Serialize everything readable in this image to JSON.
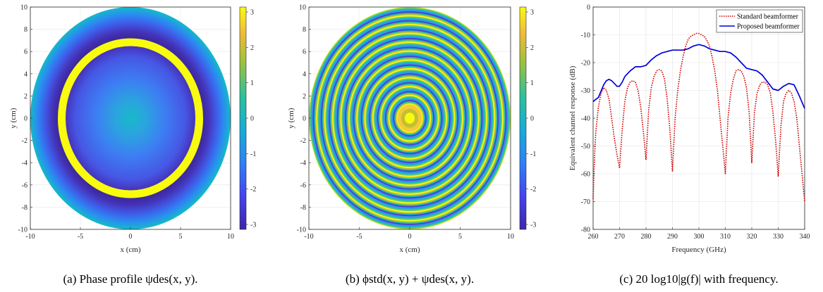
{
  "colors": {
    "parula_low": "#3e26a8",
    "parula_mid": "#14bac8",
    "parula_high": "#f9fb0e",
    "standard": "#cc0000",
    "proposed": "#0000d6"
  },
  "chart_data": [
    {
      "type": "heatmap",
      "id": "a",
      "caption": "(a) Phase profile ψdes(x, y).",
      "xlabel": "x (cm)",
      "ylabel": "y (cm)",
      "xlim": [
        -10,
        10
      ],
      "ylim": [
        -10,
        10
      ],
      "xticks": [
        "-10",
        "-5",
        "0",
        "5",
        "10"
      ],
      "yticks": [
        "10",
        "8",
        "6",
        "4",
        "2",
        "0",
        "-2",
        "-4",
        "-6",
        "-8",
        "-10"
      ],
      "colorbar": {
        "min": -3.14,
        "max": 3.14,
        "ticks": [
          "3",
          "2",
          "1",
          "0",
          "-1",
          "-2",
          "-3"
        ]
      },
      "aperture_radius": 10,
      "yellow_ring": {
        "inner_radius": 6.5,
        "outer_radius": 7.2,
        "value": 3.14
      },
      "center_value": 0,
      "edge_value": 0,
      "min_value_near_ring": -3
    },
    {
      "type": "heatmap",
      "id": "b",
      "caption": "(b) ϕstd(x, y) + ψdes(x, y).",
      "xlabel": "x (cm)",
      "ylabel": "y (cm)",
      "xlim": [
        -10,
        10
      ],
      "ylim": [
        -10,
        10
      ],
      "xticks": [
        "-10",
        "-5",
        "0",
        "5",
        "10"
      ],
      "yticks": [
        "10",
        "8",
        "6",
        "4",
        "2",
        "0",
        "-2",
        "-4",
        "-6",
        "-8",
        "-10"
      ],
      "colorbar": {
        "min": -3.14,
        "max": 3.14,
        "ticks": [
          "3",
          "2",
          "1",
          "0",
          "-1",
          "-2",
          "-3"
        ]
      },
      "aperture_radius": 10,
      "central_disk_radius": 0.9,
      "approx_ring_count": 40
    },
    {
      "type": "line",
      "id": "c",
      "caption": "(c) 20 log10|g(f)| with frequency.",
      "xlabel": "Frequency (GHz)",
      "ylabel": "Equivalent channel response (dB)",
      "xlim": [
        260,
        340
      ],
      "ylim": [
        -80,
        0
      ],
      "xticks": [
        "260",
        "270",
        "280",
        "290",
        "300",
        "310",
        "320",
        "330",
        "340"
      ],
      "yticks": [
        "0",
        "-10",
        "-20",
        "-30",
        "-40",
        "-50",
        "-60",
        "-70",
        "-80"
      ],
      "grid": true,
      "legend_position": "top-right",
      "series": [
        {
          "name": "Standard beamformer",
          "style": "dotted",
          "x": [
            260,
            260.5,
            261,
            262,
            263,
            264,
            265,
            266,
            267,
            268,
            269,
            270,
            271,
            272,
            273,
            274,
            275,
            276,
            277,
            278,
            279,
            280,
            281,
            282,
            283,
            284,
            285,
            286,
            287,
            288,
            289,
            290,
            291,
            292,
            293,
            294,
            295,
            296,
            297,
            298,
            299,
            300,
            301,
            302,
            303,
            304,
            305,
            306,
            307,
            308,
            309,
            310,
            311,
            312,
            313,
            314,
            315,
            316,
            317,
            318,
            319,
            320,
            321,
            322,
            323,
            324,
            325,
            326,
            327,
            328,
            329,
            330,
            331,
            332,
            333,
            334,
            335,
            336,
            337,
            338,
            339,
            339.5,
            340
          ],
          "y": [
            -69,
            -55,
            -45,
            -36,
            -31,
            -29,
            -30,
            -33,
            -40,
            -47,
            -53,
            -58,
            -44,
            -34,
            -29,
            -27,
            -26.5,
            -27,
            -30,
            -36,
            -45,
            -55,
            -37,
            -29,
            -25,
            -23,
            -22.5,
            -23,
            -26,
            -33,
            -44,
            -59,
            -40,
            -30,
            -23,
            -18,
            -14,
            -11.5,
            -10.5,
            -10,
            -9.5,
            -9.5,
            -10,
            -10.5,
            -12,
            -14,
            -18,
            -23,
            -30,
            -40,
            -50,
            -60,
            -40,
            -31,
            -26,
            -23,
            -22.5,
            -23,
            -25,
            -29,
            -38,
            -56,
            -38,
            -31,
            -28,
            -27,
            -27,
            -28,
            -31,
            -38,
            -48,
            -61,
            -43,
            -34,
            -31,
            -30,
            -31,
            -34,
            -40,
            -50,
            -60,
            -65,
            -70
          ]
        },
        {
          "name": "Proposed beamformer",
          "style": "solid",
          "x": [
            260,
            262,
            264,
            265,
            266,
            267,
            268,
            269,
            270,
            271,
            272,
            274,
            276,
            278,
            280,
            282,
            284,
            286,
            288,
            290,
            292,
            294,
            296,
            298,
            300,
            302,
            304,
            306,
            308,
            310,
            312,
            314,
            316,
            318,
            320,
            322,
            324,
            326,
            328,
            330,
            332,
            334,
            336,
            338,
            340
          ],
          "y": [
            -34,
            -32.5,
            -28,
            -26.5,
            -26,
            -26.5,
            -27.5,
            -28.5,
            -28.5,
            -27,
            -25,
            -23,
            -21.5,
            -21.5,
            -21,
            -19,
            -17.5,
            -16.5,
            -16,
            -15.5,
            -15.5,
            -15.5,
            -15,
            -14,
            -13.5,
            -14,
            -15,
            -15.5,
            -16,
            -16,
            -16.5,
            -18,
            -20,
            -22,
            -22.5,
            -23,
            -24.5,
            -27,
            -29.5,
            -30,
            -28.5,
            -27.5,
            -28,
            -32,
            -36.5
          ]
        }
      ]
    }
  ]
}
